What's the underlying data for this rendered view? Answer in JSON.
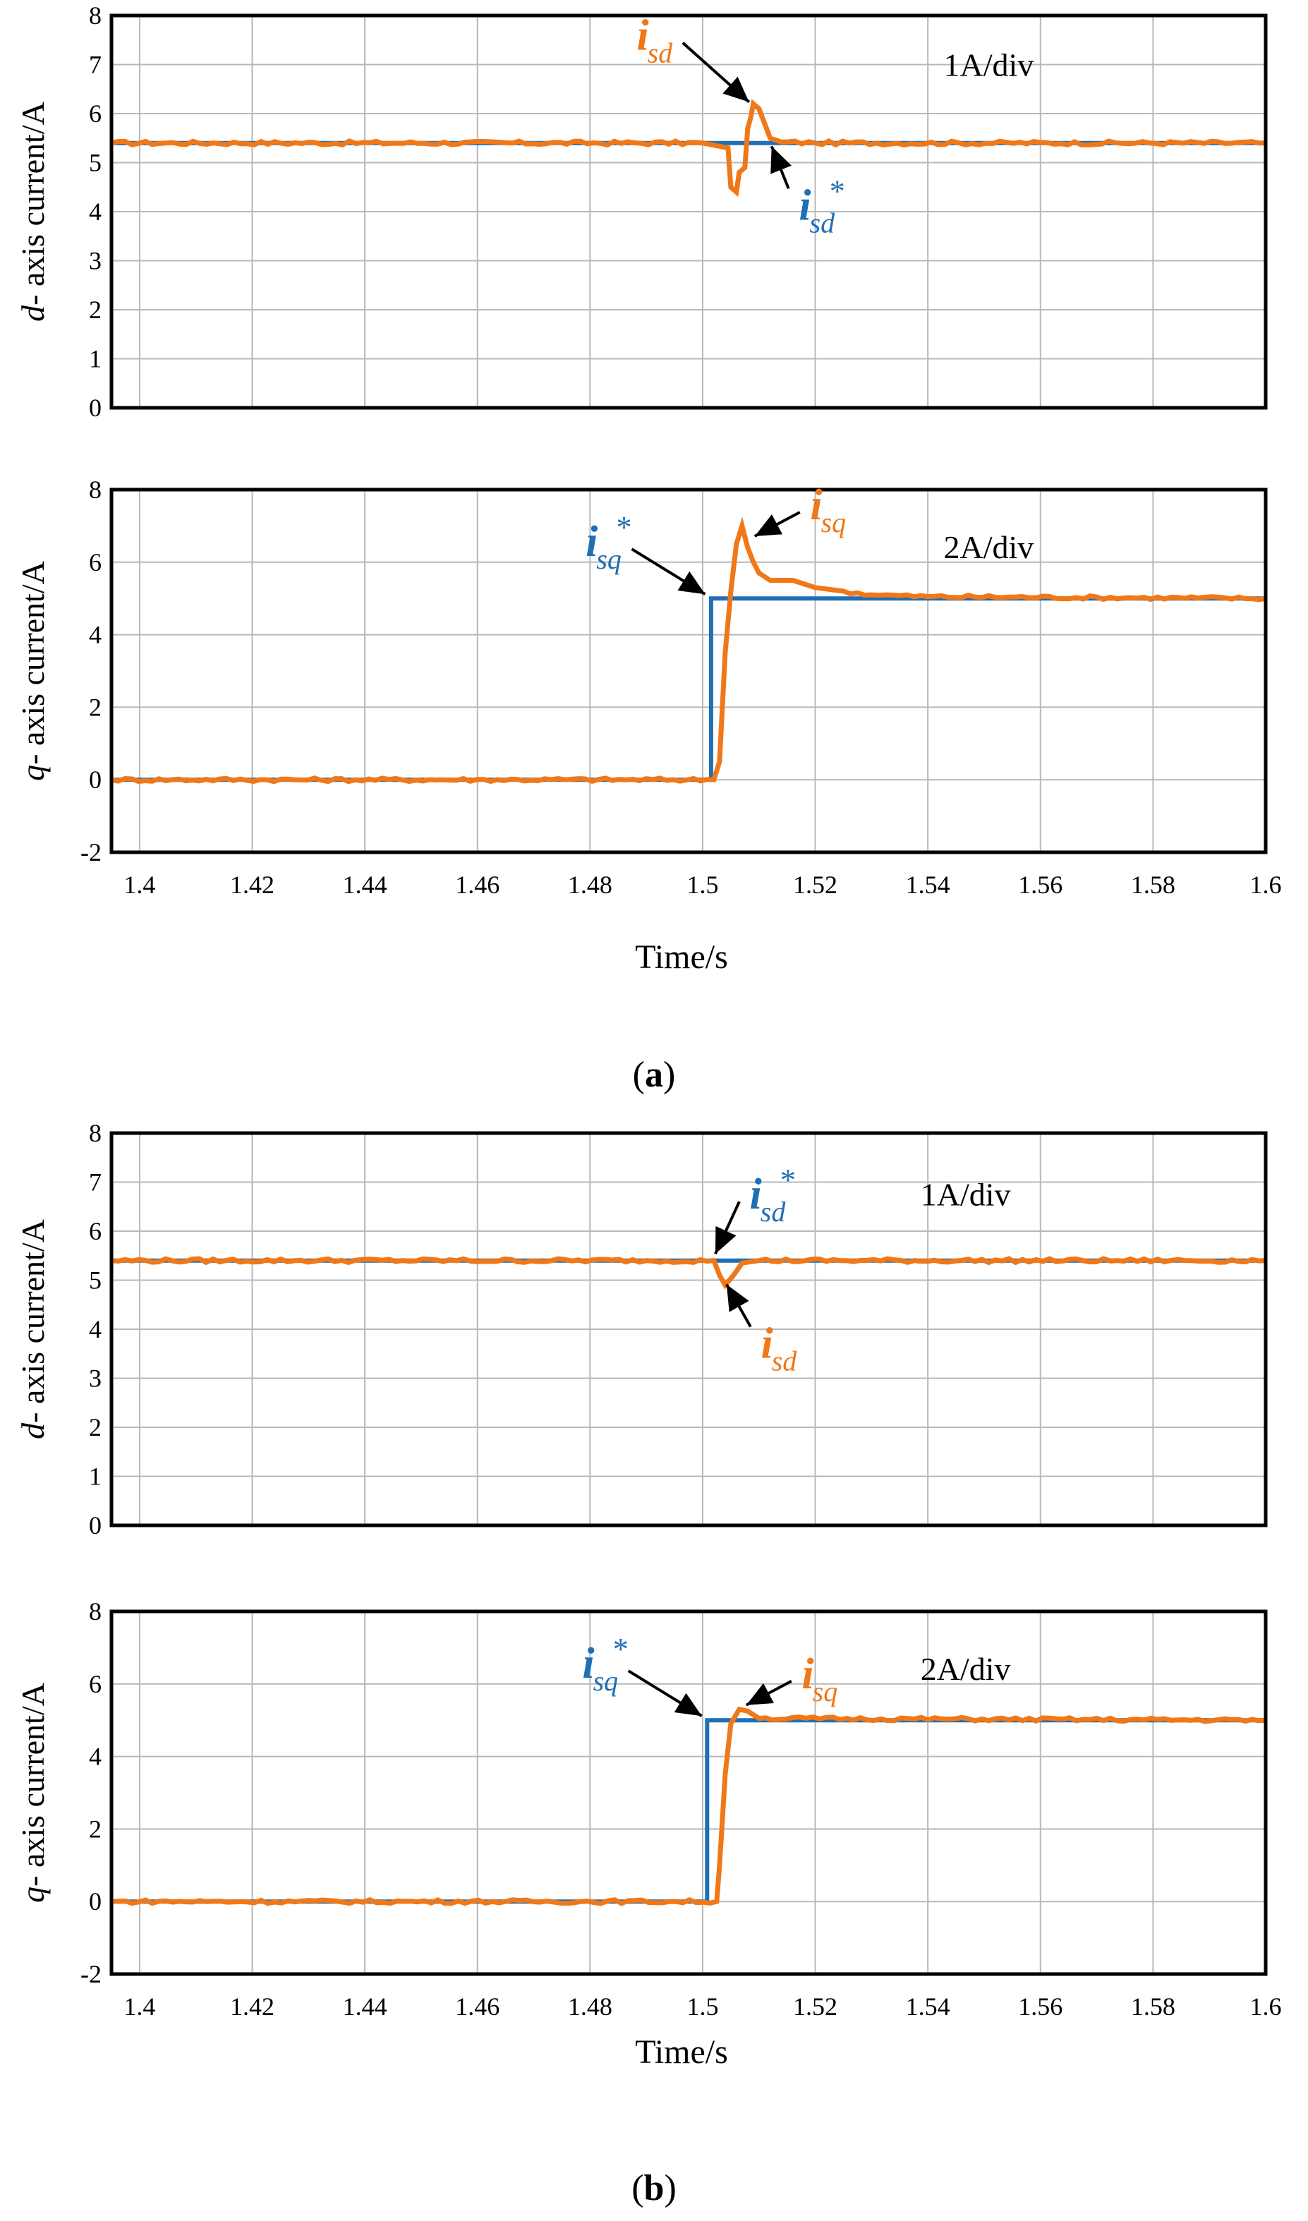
{
  "colors": {
    "reference": "#1f6fb4",
    "measured": "#f07818",
    "grid": "#b8b8b8",
    "axis": "#000000"
  },
  "labels": {
    "time_axis": "Time/s",
    "d_axis_prefix": "d",
    "d_axis_rest": "- axis current/A",
    "q_axis_prefix": "q",
    "q_axis_rest": "- axis current/A",
    "panel_a_letter": "a",
    "panel_b_letter": "b",
    "paren_open": "(",
    "paren_close": ")"
  },
  "chart_data": [
    {
      "id": "a-d",
      "type": "line",
      "panel": "a",
      "ylabel": "d- axis current/A",
      "xlabel": "",
      "xlim": [
        1.395,
        1.6
      ],
      "ylim": [
        0,
        8
      ],
      "xticks": [],
      "yticks": [
        "0",
        "1",
        "2",
        "3",
        "4",
        "5",
        "6",
        "7",
        "8"
      ],
      "scale": "1A/div",
      "series": [
        {
          "name": "i_sd*",
          "role": "reference",
          "points": [
            [
              1.395,
              5.4
            ],
            [
              1.6,
              5.4
            ]
          ]
        },
        {
          "name": "i_sd",
          "role": "measured",
          "points": [
            [
              1.395,
              5.4
            ],
            [
              1.5,
              5.4
            ],
            [
              1.5045,
              5.3
            ],
            [
              1.505,
              4.5
            ],
            [
              1.506,
              4.4
            ],
            [
              1.5065,
              4.8
            ],
            [
              1.5075,
              4.9
            ],
            [
              1.508,
              5.7
            ],
            [
              1.5085,
              5.9
            ],
            [
              1.509,
              6.2
            ],
            [
              1.51,
              6.1
            ],
            [
              1.511,
              5.8
            ],
            [
              1.512,
              5.5
            ],
            [
              1.514,
              5.42
            ],
            [
              1.52,
              5.4
            ],
            [
              1.6,
              5.4
            ]
          ]
        }
      ],
      "annotations": [
        {
          "series": "measured",
          "symbol": "i",
          "subscript": "sd",
          "star": false,
          "target": [
            1.509,
            6.15
          ]
        },
        {
          "series": "reference",
          "symbol": "i",
          "subscript": "sd",
          "star": true,
          "target": [
            1.5115,
            5.42
          ]
        }
      ]
    },
    {
      "id": "a-q",
      "type": "line",
      "panel": "a",
      "ylabel": "q- axis current/A",
      "xlabel": "Time/s",
      "xlim": [
        1.395,
        1.6
      ],
      "ylim": [
        -2,
        8
      ],
      "xticks": [
        "1.4",
        "1.42",
        "1.44",
        "1.46",
        "1.48",
        "1.5",
        "1.52",
        "1.54",
        "1.56",
        "1.58",
        "1.6"
      ],
      "yticks": [
        "-2",
        "0",
        "2",
        "4",
        "6",
        "8"
      ],
      "scale": "2A/div",
      "series": [
        {
          "name": "i_sq*",
          "role": "reference",
          "points": [
            [
              1.395,
              0
            ],
            [
              1.5015,
              0
            ],
            [
              1.5015,
              5
            ],
            [
              1.6,
              5
            ]
          ]
        },
        {
          "name": "i_sq",
          "role": "measured",
          "points": [
            [
              1.395,
              0
            ],
            [
              1.502,
              0
            ],
            [
              1.503,
              0.5
            ],
            [
              1.504,
              3.5
            ],
            [
              1.505,
              5.2
            ],
            [
              1.506,
              6.5
            ],
            [
              1.507,
              7
            ],
            [
              1.508,
              6.4
            ],
            [
              1.509,
              6
            ],
            [
              1.51,
              5.7
            ],
            [
              1.512,
              5.5
            ],
            [
              1.516,
              5.5
            ],
            [
              1.52,
              5.3
            ],
            [
              1.525,
              5.2
            ],
            [
              1.53,
              5.1
            ],
            [
              1.54,
              5.05
            ],
            [
              1.6,
              5
            ]
          ]
        }
      ],
      "annotations": [
        {
          "series": "reference",
          "symbol": "i",
          "subscript": "sq",
          "star": true,
          "target": [
            1.5012,
            5
          ]
        },
        {
          "series": "measured",
          "symbol": "i",
          "subscript": "sq",
          "star": false,
          "target": [
            1.5085,
            6.6
          ]
        }
      ]
    },
    {
      "id": "b-d",
      "type": "line",
      "panel": "b",
      "ylabel": "d- axis current/A",
      "xlabel": "",
      "xlim": [
        1.395,
        1.6
      ],
      "ylim": [
        0,
        8
      ],
      "xticks": [],
      "yticks": [
        "0",
        "1",
        "2",
        "3",
        "4",
        "5",
        "6",
        "7",
        "8"
      ],
      "scale": "1A/div",
      "series": [
        {
          "name": "i_sd*",
          "role": "reference",
          "points": [
            [
              1.395,
              5.4
            ],
            [
              1.6,
              5.4
            ]
          ]
        },
        {
          "name": "i_sd",
          "role": "measured",
          "points": [
            [
              1.395,
              5.4
            ],
            [
              1.502,
              5.4
            ],
            [
              1.503,
              5.1
            ],
            [
              1.504,
              4.9
            ],
            [
              1.5055,
              5.1
            ],
            [
              1.507,
              5.35
            ],
            [
              1.51,
              5.4
            ],
            [
              1.6,
              5.4
            ]
          ]
        }
      ],
      "annotations": [
        {
          "series": "reference",
          "symbol": "i",
          "subscript": "sd",
          "star": true,
          "target": [
            1.5015,
            5.45
          ]
        },
        {
          "series": "measured",
          "symbol": "i",
          "subscript": "sd",
          "star": false,
          "target": [
            1.5035,
            5.0
          ]
        }
      ]
    },
    {
      "id": "b-q",
      "type": "line",
      "panel": "b",
      "ylabel": "q- axis current/A",
      "xlabel": "Time/s",
      "xlim": [
        1.395,
        1.6
      ],
      "ylim": [
        -2,
        8
      ],
      "xticks": [
        "1.4",
        "1.42",
        "1.44",
        "1.46",
        "1.48",
        "1.5",
        "1.52",
        "1.54",
        "1.56",
        "1.58",
        "1.6"
      ],
      "yticks": [
        "-2",
        "0",
        "2",
        "4",
        "6",
        "8"
      ],
      "scale": "2A/div",
      "series": [
        {
          "name": "i_sq*",
          "role": "reference",
          "points": [
            [
              1.395,
              0
            ],
            [
              1.5008,
              0
            ],
            [
              1.5008,
              5
            ],
            [
              1.6,
              5
            ]
          ]
        },
        {
          "name": "i_sq",
          "role": "measured",
          "points": [
            [
              1.395,
              0
            ],
            [
              1.5025,
              0
            ],
            [
              1.503,
              1
            ],
            [
              1.504,
              3.5
            ],
            [
              1.505,
              4.9
            ],
            [
              1.5065,
              5.3
            ],
            [
              1.508,
              5.25
            ],
            [
              1.51,
              5.05
            ],
            [
              1.6,
              5
            ]
          ]
        }
      ],
      "annotations": [
        {
          "series": "reference",
          "symbol": "i",
          "subscript": "sq",
          "star": true,
          "target": [
            1.5006,
            5
          ]
        },
        {
          "series": "measured",
          "symbol": "i",
          "subscript": "sq",
          "star": false,
          "target": [
            1.507,
            5.3
          ]
        }
      ]
    }
  ]
}
